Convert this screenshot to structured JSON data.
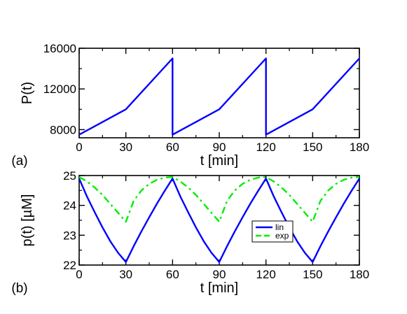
{
  "chart_data": [
    {
      "type": "line",
      "panel_label": "(a)",
      "xlabel": "t [min]",
      "ylabel": "P(t)",
      "xlim": [
        0,
        180
      ],
      "ylim": [
        7200,
        16000
      ],
      "x_ticks": [
        0,
        30,
        60,
        90,
        120,
        150,
        180
      ],
      "y_ticks": [
        8000,
        12000,
        16000
      ],
      "grid": false,
      "series": [
        {
          "color": "#0000ff",
          "style": "solid",
          "x": [
            0,
            30,
            60,
            60,
            90,
            120,
            120,
            150,
            180
          ],
          "y": [
            7500,
            10000,
            15000,
            7500,
            10000,
            15000,
            7500,
            10000,
            15000
          ]
        }
      ]
    },
    {
      "type": "line",
      "panel_label": "(b)",
      "xlabel": "t [min]",
      "ylabel": "p(t) [µM]",
      "xlim": [
        0,
        180
      ],
      "ylim": [
        22,
        25
      ],
      "x_ticks": [
        0,
        30,
        60,
        90,
        120,
        150,
        180
      ],
      "y_ticks": [
        22,
        23,
        24,
        25
      ],
      "grid": false,
      "legend_position": "center-right",
      "series": [
        {
          "name": "lin",
          "color": "#0000ff",
          "style": "solid",
          "x": [
            0,
            5,
            10,
            15,
            20,
            25,
            30,
            35,
            40,
            45,
            50,
            55,
            60,
            65,
            70,
            75,
            80,
            85,
            90,
            95,
            100,
            105,
            110,
            115,
            120,
            125,
            130,
            135,
            140,
            145,
            150,
            155,
            160,
            165,
            170,
            175,
            180
          ],
          "y": [
            24.9,
            24.3,
            23.77,
            23.26,
            22.8,
            22.41,
            22.1,
            22.63,
            23.13,
            23.6,
            24.06,
            24.49,
            24.9,
            24.3,
            23.77,
            23.26,
            22.8,
            22.41,
            22.1,
            22.63,
            23.13,
            23.6,
            24.06,
            24.49,
            24.9,
            24.3,
            23.77,
            23.26,
            22.8,
            22.41,
            22.1,
            22.63,
            23.13,
            23.6,
            24.06,
            24.49,
            24.9
          ]
        },
        {
          "name": "exp",
          "color": "#00ee00",
          "style": "dashed",
          "x": [
            0,
            5,
            10,
            15,
            20,
            25,
            30,
            35,
            40,
            45,
            50,
            55,
            60,
            65,
            70,
            75,
            80,
            85,
            90,
            95,
            100,
            105,
            110,
            115,
            120,
            125,
            130,
            135,
            140,
            145,
            150,
            155,
            160,
            165,
            170,
            175,
            180
          ],
          "y": [
            24.95,
            24.8,
            24.6,
            24.35,
            24.05,
            23.75,
            23.45,
            24.15,
            24.5,
            24.72,
            24.86,
            24.93,
            24.95,
            24.8,
            24.6,
            24.35,
            24.05,
            23.75,
            23.45,
            24.15,
            24.5,
            24.72,
            24.86,
            24.93,
            24.95,
            24.8,
            24.6,
            24.35,
            24.05,
            23.75,
            23.45,
            24.15,
            24.5,
            24.72,
            24.86,
            24.93,
            24.95
          ]
        }
      ]
    }
  ]
}
